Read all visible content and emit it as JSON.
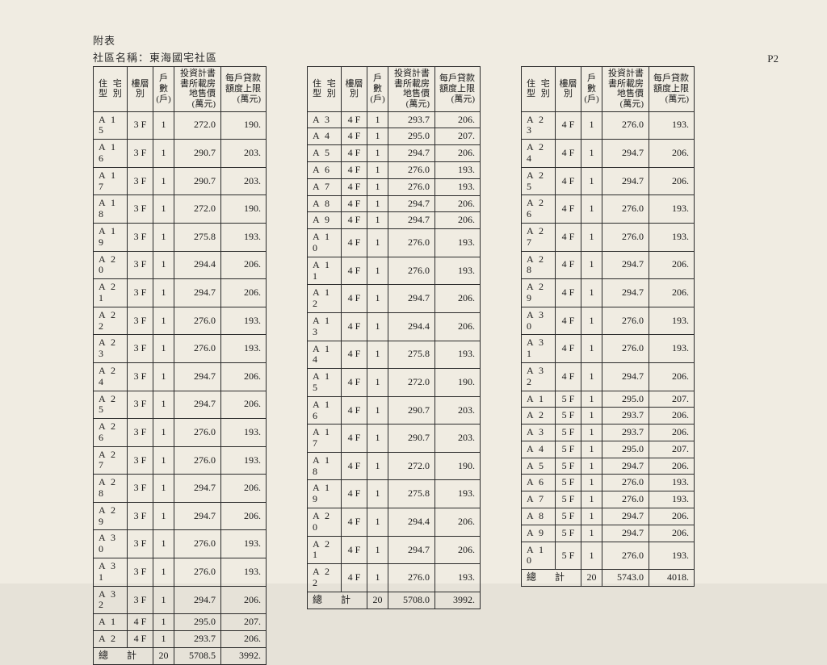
{
  "header": {
    "line1": "附表",
    "line2": "社區名稱：東海國宅社區",
    "page_label": "P2"
  },
  "columns": {
    "type": "住 宅\n型 別",
    "floor": "樓層\n別",
    "units": "戶數\n(戶)",
    "price": "投資計書\n書所載房\n地售價\n(萬元)",
    "loan": "每戶貸款\n額度上限\n(萬元)"
  },
  "total_label": "總  計",
  "tables": [
    {
      "rows": [
        [
          "A 1 5",
          "3 F",
          "1",
          "272.0",
          "190."
        ],
        [
          "A 1 6",
          "3 F",
          "1",
          "290.7",
          "203."
        ],
        [
          "A 1 7",
          "3 F",
          "1",
          "290.7",
          "203."
        ],
        [
          "A 1 8",
          "3 F",
          "1",
          "272.0",
          "190."
        ],
        [
          "A 1 9",
          "3 F",
          "1",
          "275.8",
          "193."
        ],
        [
          "A 2 0",
          "3 F",
          "1",
          "294.4",
          "206."
        ],
        [
          "A 2 1",
          "3 F",
          "1",
          "294.7",
          "206."
        ],
        [
          "A 2 2",
          "3 F",
          "1",
          "276.0",
          "193."
        ],
        [
          "A 2 3",
          "3 F",
          "1",
          "276.0",
          "193."
        ],
        [
          "A 2 4",
          "3 F",
          "1",
          "294.7",
          "206."
        ],
        [
          "A 2 5",
          "3 F",
          "1",
          "294.7",
          "206."
        ],
        [
          "A 2 6",
          "3 F",
          "1",
          "276.0",
          "193."
        ],
        [
          "A 2 7",
          "3 F",
          "1",
          "276.0",
          "193."
        ],
        [
          "A 2 8",
          "3 F",
          "1",
          "294.7",
          "206."
        ],
        [
          "A 2 9",
          "3 F",
          "1",
          "294.7",
          "206."
        ],
        [
          "A 3 0",
          "3 F",
          "1",
          "276.0",
          "193."
        ],
        [
          "A 3 1",
          "3 F",
          "1",
          "276.0",
          "193."
        ],
        [
          "A 3 2",
          "3 F",
          "1",
          "294.7",
          "206."
        ],
        [
          "A 1",
          "4 F",
          "1",
          "295.0",
          "207."
        ],
        [
          "A 2",
          "4 F",
          "1",
          "293.7",
          "206."
        ]
      ],
      "total": [
        "20",
        "5708.5",
        "3992."
      ]
    },
    {
      "rows": [
        [
          "A 3",
          "4 F",
          "1",
          "293.7",
          "206."
        ],
        [
          "A 4",
          "4 F",
          "1",
          "295.0",
          "207."
        ],
        [
          "A 5",
          "4 F",
          "1",
          "294.7",
          "206."
        ],
        [
          "A 6",
          "4 F",
          "1",
          "276.0",
          "193."
        ],
        [
          "A 7",
          "4 F",
          "1",
          "276.0",
          "193."
        ],
        [
          "A 8",
          "4 F",
          "1",
          "294.7",
          "206."
        ],
        [
          "A 9",
          "4 F",
          "1",
          "294.7",
          "206."
        ],
        [
          "A 1 0",
          "4 F",
          "1",
          "276.0",
          "193."
        ],
        [
          "A 1 1",
          "4 F",
          "1",
          "276.0",
          "193."
        ],
        [
          "A 1 2",
          "4 F",
          "1",
          "294.7",
          "206."
        ],
        [
          "A 1 3",
          "4 F",
          "1",
          "294.4",
          "206."
        ],
        [
          "A 1 4",
          "4 F",
          "1",
          "275.8",
          "193."
        ],
        [
          "A 1 5",
          "4 F",
          "1",
          "272.0",
          "190."
        ],
        [
          "A 1 6",
          "4 F",
          "1",
          "290.7",
          "203."
        ],
        [
          "A 1 7",
          "4 F",
          "1",
          "290.7",
          "203."
        ],
        [
          "A 1 8",
          "4 F",
          "1",
          "272.0",
          "190."
        ],
        [
          "A 1 9",
          "4 F",
          "1",
          "275.8",
          "193."
        ],
        [
          "A 2 0",
          "4 F",
          "1",
          "294.4",
          "206."
        ],
        [
          "A 2 1",
          "4 F",
          "1",
          "294.7",
          "206."
        ],
        [
          "A 2 2",
          "4 F",
          "1",
          "276.0",
          "193."
        ]
      ],
      "total": [
        "20",
        "5708.0",
        "3992."
      ]
    },
    {
      "rows": [
        [
          "A 2 3",
          "4 F",
          "1",
          "276.0",
          "193."
        ],
        [
          "A 2 4",
          "4 F",
          "1",
          "294.7",
          "206."
        ],
        [
          "A 2 5",
          "4 F",
          "1",
          "294.7",
          "206."
        ],
        [
          "A 2 6",
          "4 F",
          "1",
          "276.0",
          "193."
        ],
        [
          "A 2 7",
          "4 F",
          "1",
          "276.0",
          "193."
        ],
        [
          "A 2 8",
          "4 F",
          "1",
          "294.7",
          "206."
        ],
        [
          "A 2 9",
          "4 F",
          "1",
          "294.7",
          "206."
        ],
        [
          "A 3 0",
          "4 F",
          "1",
          "276.0",
          "193."
        ],
        [
          "A 3 1",
          "4 F",
          "1",
          "276.0",
          "193."
        ],
        [
          "A 3 2",
          "4 F",
          "1",
          "294.7",
          "206."
        ],
        [
          "A 1",
          "5 F",
          "1",
          "295.0",
          "207."
        ],
        [
          "A 2",
          "5 F",
          "1",
          "293.7",
          "206."
        ],
        [
          "A 3",
          "5 F",
          "1",
          "293.7",
          "206."
        ],
        [
          "A 4",
          "5 F",
          "1",
          "295.0",
          "207."
        ],
        [
          "A 5",
          "5 F",
          "1",
          "294.7",
          "206."
        ],
        [
          "A 6",
          "5 F",
          "1",
          "276.0",
          "193."
        ],
        [
          "A 7",
          "5 F",
          "1",
          "276.0",
          "193."
        ],
        [
          "A 8",
          "5 F",
          "1",
          "294.7",
          "206."
        ],
        [
          "A 9",
          "5 F",
          "1",
          "294.7",
          "206."
        ],
        [
          "A 1 0",
          "5 F",
          "1",
          "276.0",
          "193."
        ]
      ],
      "total": [
        "20",
        "5743.0",
        "4018."
      ]
    }
  ]
}
